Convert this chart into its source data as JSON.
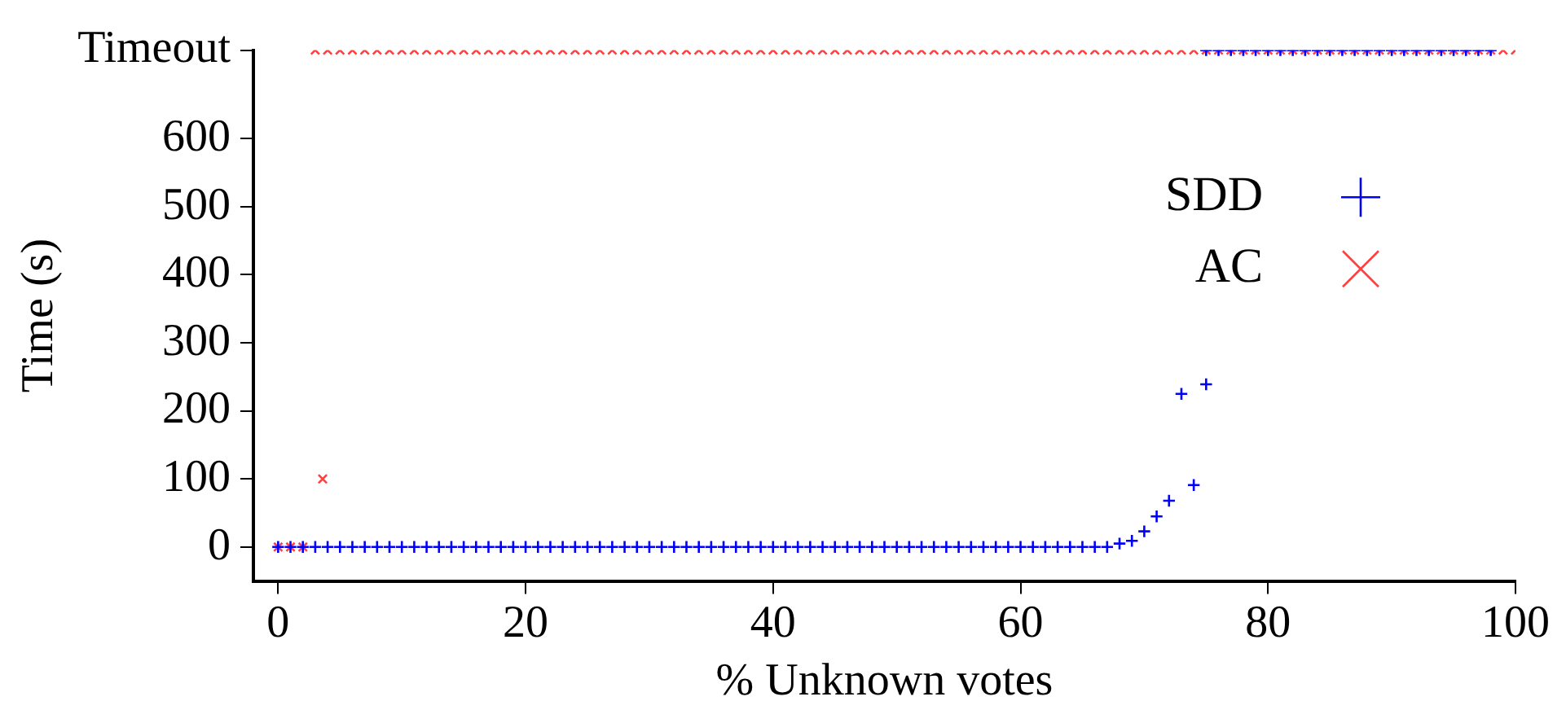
{
  "chart_data": {
    "type": "scatter",
    "xlabel": "% Unknown votes",
    "ylabel": "Time (s)",
    "xlim": [
      -2,
      100
    ],
    "xticks": [
      0,
      20,
      40,
      60,
      80,
      100
    ],
    "ylim": [
      -50,
      730
    ],
    "yticks": [
      0,
      100,
      200,
      300,
      400,
      500,
      600,
      {
        "value": 730,
        "label": "Timeout"
      }
    ],
    "grid": false,
    "legend": "top right",
    "marker": "cross",
    "series": [
      {
        "name": "SDD",
        "color": "#0000ff",
        "x": [
          0,
          1,
          2,
          3,
          4,
          5,
          6,
          7,
          8,
          9,
          10,
          11,
          12,
          13,
          14,
          15,
          16,
          17,
          18,
          19,
          20,
          21,
          22,
          23,
          24,
          25,
          26,
          27,
          28,
          29,
          30,
          31,
          32,
          33,
          34,
          35,
          36,
          37,
          38,
          39,
          40,
          41,
          42,
          43,
          44,
          45,
          46,
          47,
          48,
          49,
          50,
          51,
          52,
          53,
          54,
          55,
          56,
          57,
          58,
          59,
          60,
          61,
          62,
          63,
          64,
          65,
          66,
          67,
          68,
          69,
          70,
          71,
          72,
          73,
          74,
          75,
          75,
          76,
          77,
          78,
          79,
          80,
          81,
          82,
          83,
          84,
          85,
          86,
          87,
          88,
          89,
          90,
          91,
          92,
          93,
          94,
          95,
          96,
          97,
          98
        ],
        "values": [
          0,
          0,
          0,
          0,
          0,
          0,
          0,
          0,
          0,
          0,
          0,
          0,
          0,
          0,
          0,
          0,
          0,
          0,
          0,
          0,
          0,
          0,
          0,
          0,
          0,
          0,
          0,
          0,
          0,
          0,
          0,
          0,
          0,
          0,
          0,
          0,
          0,
          0,
          0,
          0,
          0,
          0,
          0,
          0,
          0,
          0,
          0,
          0,
          0,
          0,
          0,
          0,
          0,
          0,
          0,
          0,
          0,
          0,
          0,
          0,
          0,
          0,
          0,
          0,
          0,
          0,
          0,
          0,
          5,
          9,
          23,
          45,
          68,
          225,
          91,
          239,
          730,
          730,
          730,
          730,
          730,
          730,
          730,
          730,
          730,
          730,
          730,
          730,
          730,
          730,
          730,
          730,
          730,
          730,
          730,
          730,
          730,
          730,
          730,
          730
        ]
      },
      {
        "name": "AC",
        "color": "#ff4040",
        "x": [
          0,
          1,
          2,
          3.6,
          3,
          4,
          5,
          6,
          7,
          8,
          9,
          10,
          11,
          12,
          13,
          14,
          15,
          16,
          17,
          18,
          19,
          20,
          21,
          22,
          23,
          24,
          25,
          26,
          27,
          28,
          29,
          30,
          31,
          32,
          33,
          34,
          35,
          36,
          37,
          38,
          39,
          40,
          41,
          42,
          43,
          44,
          45,
          46,
          47,
          48,
          49,
          50,
          51,
          52,
          53,
          54,
          55,
          56,
          57,
          58,
          59,
          60,
          61,
          62,
          63,
          64,
          65,
          66,
          67,
          68,
          69,
          70,
          71,
          72,
          73,
          74,
          75,
          76,
          77,
          78,
          79,
          80,
          81,
          82,
          83,
          84,
          85,
          86,
          87,
          88,
          89,
          90,
          91,
          92,
          93,
          94,
          95,
          96,
          97,
          98,
          99,
          100
        ],
        "values": [
          0,
          0,
          0,
          100,
          730,
          730,
          730,
          730,
          730,
          730,
          730,
          730,
          730,
          730,
          730,
          730,
          730,
          730,
          730,
          730,
          730,
          730,
          730,
          730,
          730,
          730,
          730,
          730,
          730,
          730,
          730,
          730,
          730,
          730,
          730,
          730,
          730,
          730,
          730,
          730,
          730,
          730,
          730,
          730,
          730,
          730,
          730,
          730,
          730,
          730,
          730,
          730,
          730,
          730,
          730,
          730,
          730,
          730,
          730,
          730,
          730,
          730,
          730,
          730,
          730,
          730,
          730,
          730,
          730,
          730,
          730,
          730,
          730,
          730,
          730,
          730,
          730,
          730,
          730,
          730,
          730,
          730,
          730,
          730,
          730,
          730,
          730,
          730,
          730,
          730,
          730,
          730,
          730,
          730,
          730,
          730,
          730,
          730,
          730,
          730,
          730,
          730
        ]
      }
    ]
  }
}
